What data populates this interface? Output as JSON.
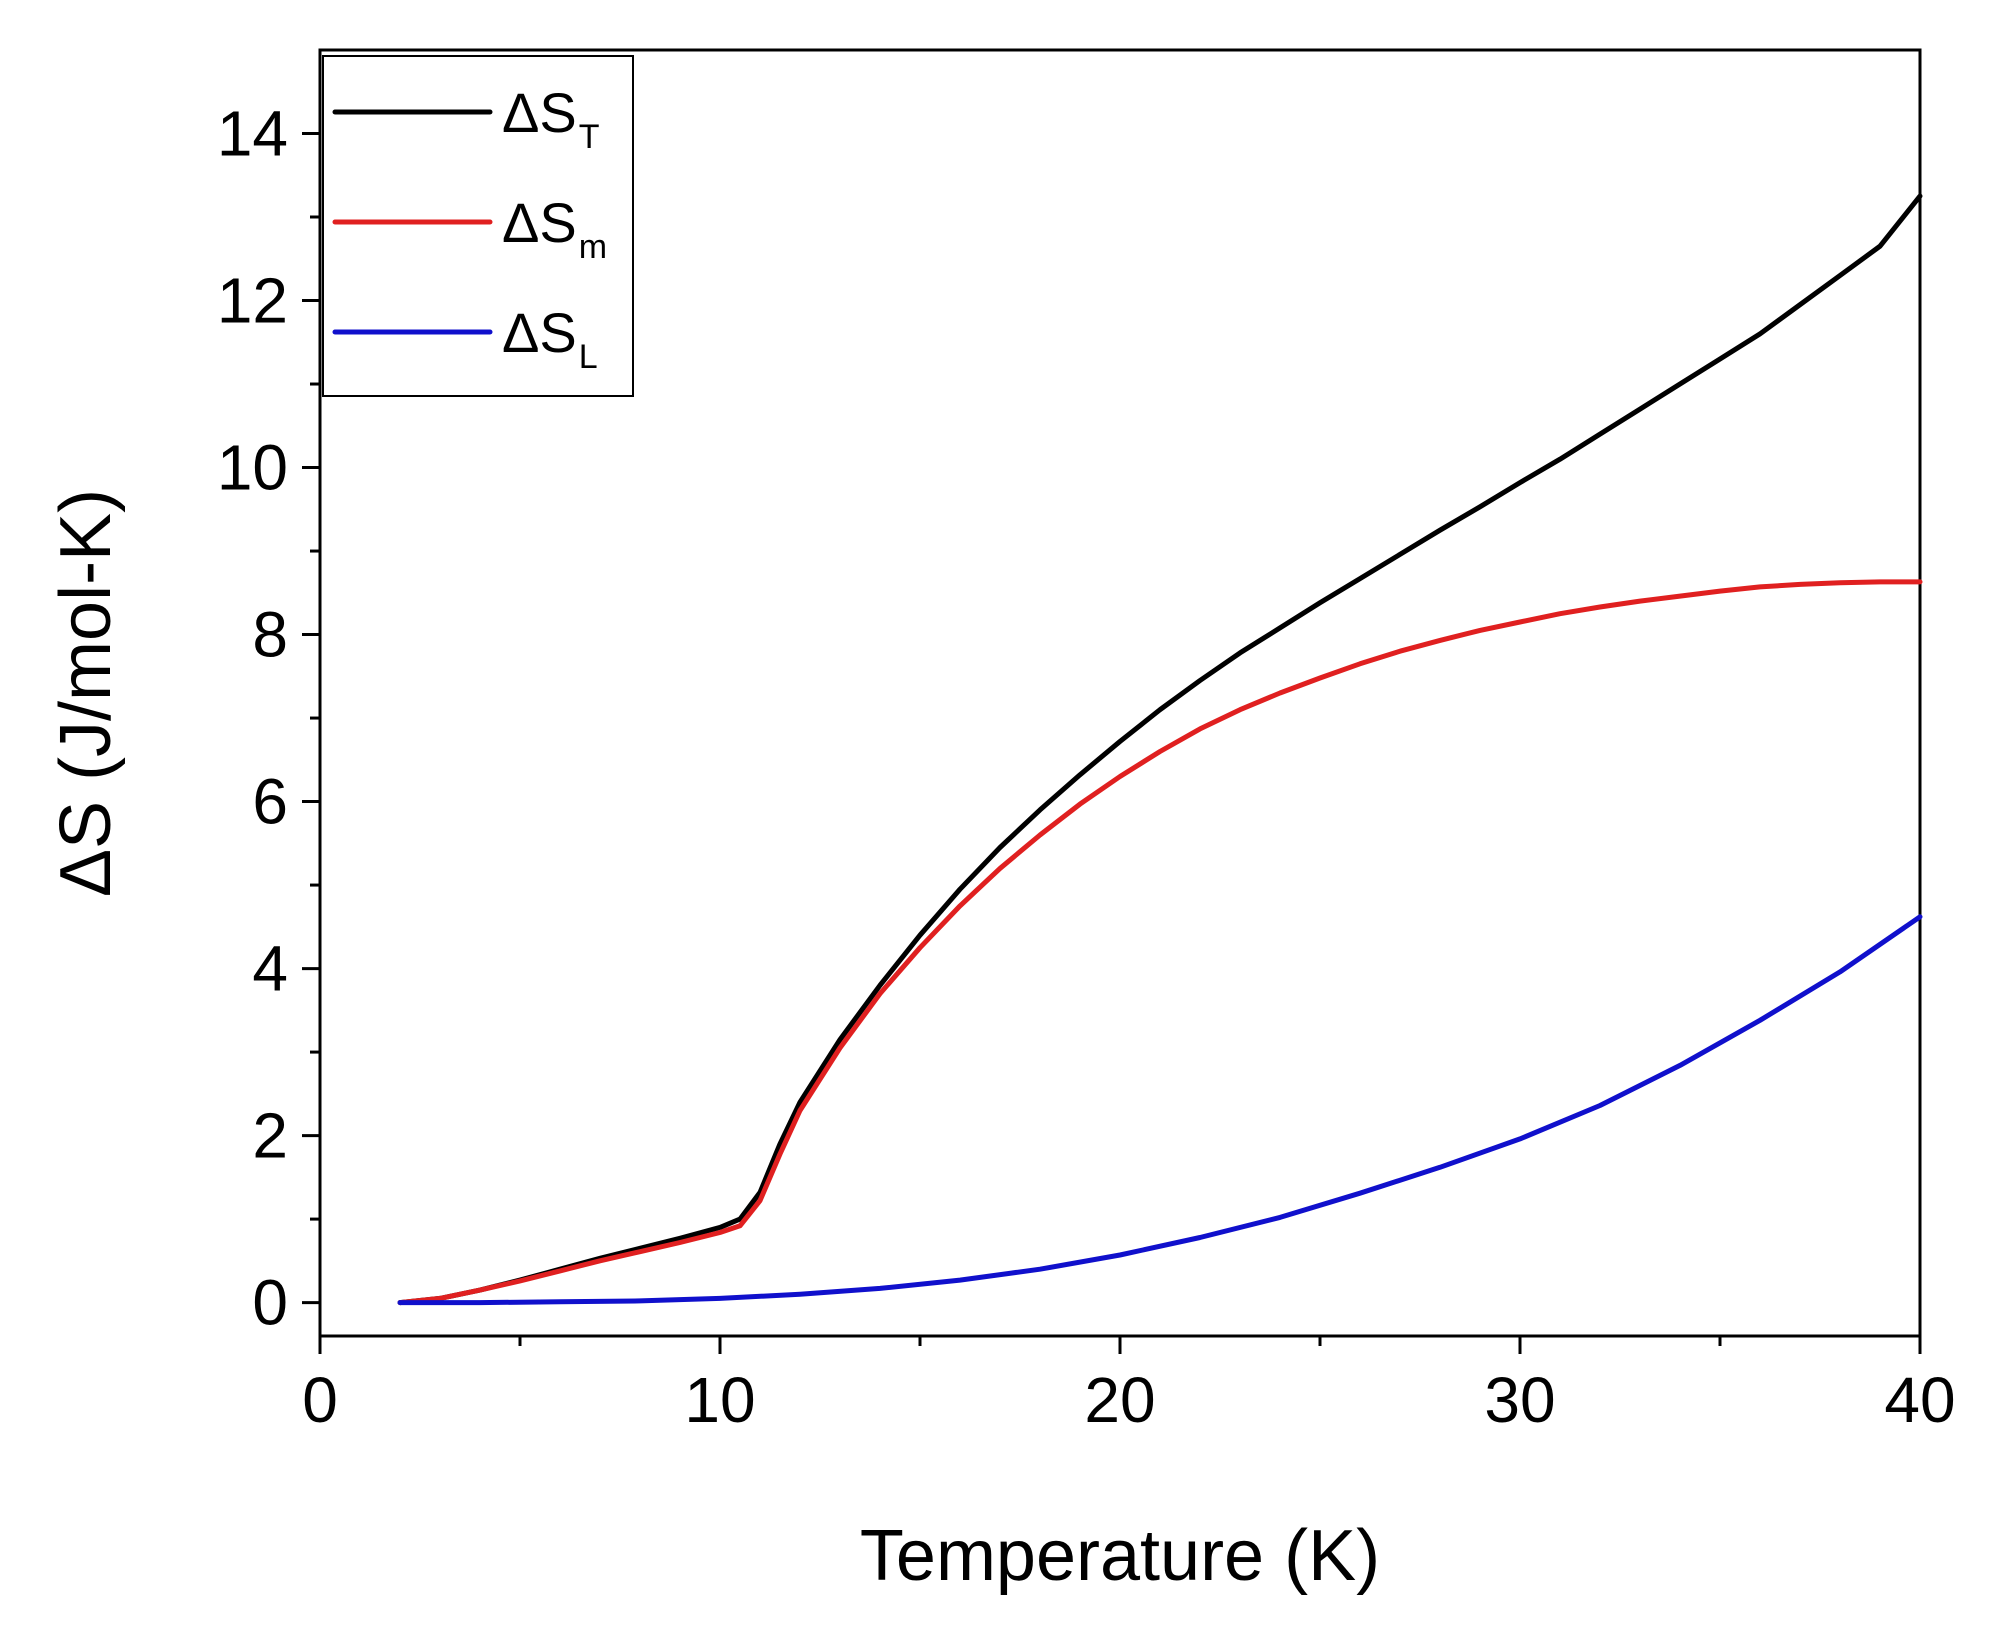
{
  "chart_data": {
    "type": "line",
    "title": "",
    "xlabel": "Temperature (K)",
    "ylabel": "ΔS (J/mol-K)",
    "xlim": [
      0,
      40
    ],
    "ylim": [
      -0.4,
      15
    ],
    "xticks": [
      0,
      10,
      20,
      30,
      40
    ],
    "yticks": [
      0,
      2,
      4,
      6,
      8,
      10,
      12,
      14
    ],
    "x_minor_step": 5,
    "y_minor_step": 1,
    "grid": false,
    "legend_position": "top-left",
    "series": [
      {
        "name": "ΔS_T",
        "label_main": "ΔS",
        "label_sub": "T",
        "color": "#000000",
        "x": [
          2,
          3,
          4,
          5,
          6,
          7,
          8,
          9,
          10,
          10.5,
          11,
          11.5,
          12,
          13,
          14,
          15,
          16,
          17,
          18,
          19,
          20,
          21,
          22,
          23,
          24,
          25,
          26,
          27,
          28,
          29,
          30,
          31,
          32,
          33,
          34,
          35,
          36,
          37,
          38,
          39,
          40
        ],
        "y": [
          0,
          0.05,
          0.15,
          0.27,
          0.4,
          0.53,
          0.65,
          0.77,
          0.9,
          1.0,
          1.32,
          1.9,
          2.4,
          3.15,
          3.8,
          4.4,
          4.95,
          5.45,
          5.9,
          6.32,
          6.72,
          7.1,
          7.45,
          7.78,
          8.08,
          8.38,
          8.67,
          8.96,
          9.25,
          9.53,
          9.82,
          10.1,
          10.4,
          10.7,
          11.0,
          11.3,
          11.6,
          11.95,
          12.3,
          12.65,
          13.25
        ]
      },
      {
        "name": "ΔS_m",
        "label_main": "ΔS",
        "label_sub": "m",
        "color": "#e02020",
        "x": [
          2,
          3,
          4,
          5,
          6,
          7,
          8,
          9,
          10,
          10.5,
          11,
          11.5,
          12,
          13,
          14,
          15,
          16,
          17,
          18,
          19,
          20,
          21,
          22,
          23,
          24,
          25,
          26,
          27,
          28,
          29,
          30,
          31,
          32,
          33,
          34,
          35,
          36,
          37,
          38,
          39,
          40
        ],
        "y": [
          0,
          0.05,
          0.15,
          0.26,
          0.38,
          0.5,
          0.61,
          0.72,
          0.84,
          0.92,
          1.22,
          1.78,
          2.3,
          3.05,
          3.7,
          4.25,
          4.75,
          5.2,
          5.6,
          5.97,
          6.3,
          6.6,
          6.87,
          7.1,
          7.3,
          7.48,
          7.65,
          7.8,
          7.93,
          8.05,
          8.15,
          8.25,
          8.33,
          8.4,
          8.46,
          8.52,
          8.57,
          8.6,
          8.62,
          8.63,
          8.63
        ]
      },
      {
        "name": "ΔS_L",
        "label_main": "ΔS",
        "label_sub": "L",
        "color": "#1010cc",
        "x": [
          2,
          4,
          6,
          8,
          10,
          12,
          14,
          16,
          18,
          20,
          22,
          24,
          26,
          28,
          30,
          32,
          34,
          36,
          38,
          40
        ],
        "y": [
          0,
          0.0,
          0.01,
          0.02,
          0.05,
          0.1,
          0.17,
          0.27,
          0.4,
          0.57,
          0.78,
          1.02,
          1.31,
          1.62,
          1.96,
          2.36,
          2.84,
          3.38,
          3.96,
          4.62
        ]
      }
    ]
  }
}
